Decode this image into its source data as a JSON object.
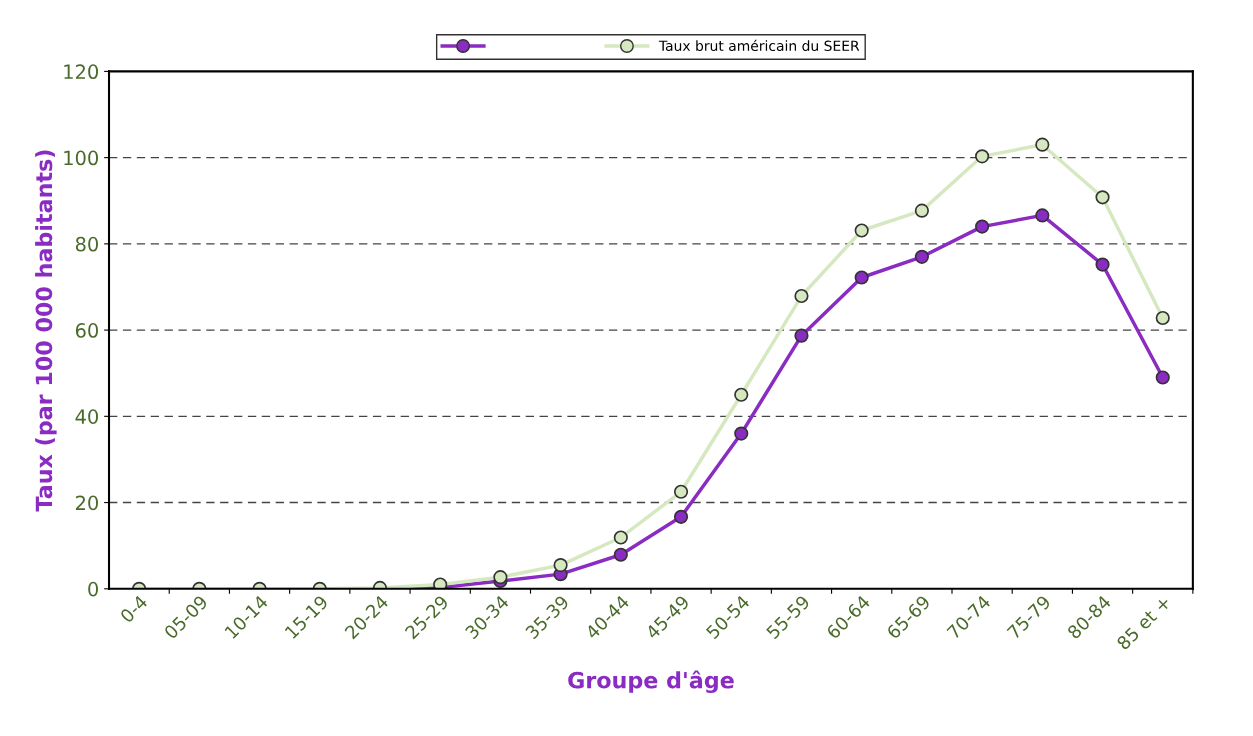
{
  "chart_data": {
    "type": "line",
    "xlabel": "Groupe d'âge",
    "ylabel": "Taux (par 100 000 habitants)",
    "categories": [
      "0-4",
      "05-09",
      "10-14",
      "15-19",
      "20-24",
      "25-29",
      "30-34",
      "35-39",
      "40-44",
      "45-49",
      "50-54",
      "55-59",
      "60-64",
      "65-69",
      "70-74",
      "75-79",
      "80-84",
      "85 et +"
    ],
    "series": [
      {
        "color": "#8a2bc2",
        "values": [
          null,
          null,
          null,
          null,
          0,
          0.3,
          1.8,
          3.4,
          7.9,
          16.7,
          36,
          58.7,
          72.2,
          77,
          84,
          86.6,
          75.2,
          49
        ]
      },
      {
        "name": "Taux brut américain du SEER",
        "color": "#d6e8c0",
        "values": [
          0,
          0,
          0,
          0,
          0.2,
          1,
          2.7,
          5.5,
          11.9,
          22.5,
          45,
          67.9,
          83.1,
          87.7,
          100.3,
          103,
          90.8,
          62.8
        ]
      }
    ],
    "ylim": [
      0,
      120
    ],
    "yticks": [
      0,
      20,
      40,
      60,
      80,
      100,
      120
    ],
    "grid": "y",
    "legend": "top",
    "marker": "circle",
    "line_style": "solid"
  }
}
